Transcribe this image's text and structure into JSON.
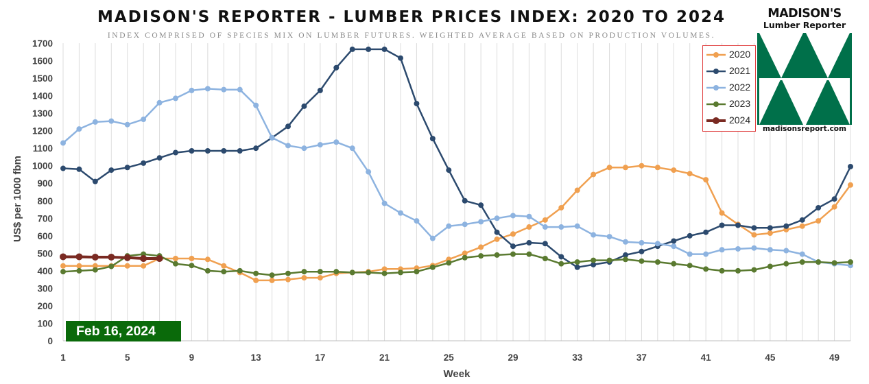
{
  "header": {
    "title": "MADISON'S REPORTER - LUMBER PRICES INDEX: 2020 TO 2024",
    "subtitle": "INDEX COMPRISED OF SPECIES MIX ON LUMBER FUTURES. WEIGHTED AVERAGE BASED ON PRODUCTION VOLUMES."
  },
  "logo": {
    "name": "MADISON'S",
    "subtitle": "Lumber Reporter",
    "url": "madisonsreport.com",
    "color": "#00704a"
  },
  "badge": {
    "date": "Feb 16, 2024",
    "color": "#0a6a0a"
  },
  "chart_data": {
    "type": "line",
    "xlabel": "Week",
    "ylabel": "US$ per 1000 fbm",
    "xlim": [
      1,
      50
    ],
    "ylim": [
      0,
      1700
    ],
    "x_ticks": [
      "1",
      "5",
      "9",
      "13",
      "17",
      "21",
      "25",
      "29",
      "33",
      "37",
      "41",
      "45",
      "49"
    ],
    "y_ticks": [
      "0",
      "100",
      "200",
      "300",
      "400",
      "500",
      "600",
      "700",
      "800",
      "900",
      "1000",
      "1100",
      "1200",
      "1300",
      "1400",
      "1500",
      "1600",
      "1700"
    ],
    "grid": "vertical",
    "legend_position": "top-right",
    "series": [
      {
        "name": "2020",
        "color": "#f0a050",
        "values": [
          428,
          428,
          428,
          428,
          428,
          428,
          470,
          470,
          470,
          465,
          428,
          390,
          345,
          345,
          350,
          360,
          360,
          385,
          390,
          395,
          410,
          410,
          415,
          430,
          465,
          500,
          535,
          580,
          610,
          650,
          690,
          760,
          860,
          950,
          990,
          990,
          1000,
          990,
          975,
          955,
          920,
          730,
          665,
          605,
          615,
          635,
          655,
          685,
          765,
          890
        ]
      },
      {
        "name": "2021",
        "color": "#2c4a6e",
        "values": [
          985,
          980,
          910,
          975,
          990,
          1015,
          1045,
          1075,
          1085,
          1085,
          1085,
          1085,
          1100,
          1160,
          1225,
          1340,
          1430,
          1560,
          1665,
          1665,
          1665,
          1615,
          1355,
          1155,
          975,
          800,
          775,
          620,
          540,
          560,
          555,
          480,
          420,
          435,
          450,
          490,
          510,
          540,
          570,
          600,
          620,
          660,
          660,
          645,
          645,
          655,
          690,
          760,
          810,
          995
        ]
      },
      {
        "name": "2022",
        "color": "#8db3e0",
        "values": [
          1130,
          1210,
          1250,
          1255,
          1235,
          1265,
          1360,
          1385,
          1430,
          1440,
          1435,
          1435,
          1345,
          1160,
          1115,
          1100,
          1120,
          1135,
          1100,
          965,
          785,
          730,
          685,
          585,
          655,
          665,
          680,
          700,
          715,
          710,
          650,
          650,
          655,
          605,
          595,
          565,
          560,
          555,
          540,
          495,
          495,
          520,
          525,
          530,
          520,
          515,
          495,
          450,
          440,
          430
        ]
      },
      {
        "name": "2023",
        "color": "#5a7a30",
        "values": [
          395,
          400,
          405,
          425,
          485,
          495,
          485,
          440,
          430,
          400,
          395,
          400,
          385,
          375,
          385,
          395,
          395,
          395,
          390,
          390,
          385,
          390,
          395,
          420,
          445,
          475,
          485,
          490,
          495,
          495,
          470,
          440,
          450,
          460,
          460,
          465,
          455,
          450,
          440,
          430,
          410,
          400,
          400,
          405,
          425,
          440,
          450,
          450,
          445,
          450
        ]
      },
      {
        "name": "2024",
        "color": "#7a2a22",
        "values": [
          480,
          480,
          478,
          478,
          475,
          470,
          470
        ]
      }
    ]
  }
}
